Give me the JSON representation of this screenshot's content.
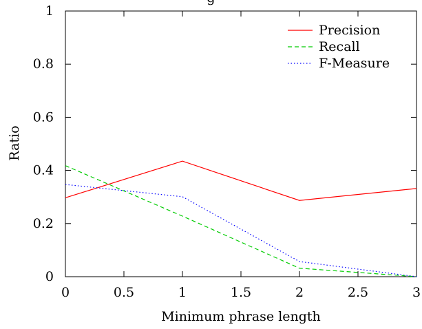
{
  "chart_data": {
    "type": "line",
    "title": "g",
    "xlabel": "Minimum phrase length",
    "ylabel": "Ratio",
    "xlim": [
      0,
      3
    ],
    "ylim": [
      0,
      1
    ],
    "x_ticks": [
      "0",
      "0.5",
      "1",
      "1.5",
      "2",
      "2.5",
      "3"
    ],
    "y_ticks": [
      "0",
      "0.2",
      "0.4",
      "0.6",
      "0.8",
      "1"
    ],
    "x_tick_values": [
      0,
      0.5,
      1,
      1.5,
      2,
      2.5,
      3
    ],
    "y_tick_values": [
      0,
      0.2,
      0.4,
      0.6,
      0.8,
      1
    ],
    "x": [
      0,
      1,
      2,
      3
    ],
    "grid": false,
    "legend_position": "top-right",
    "series": [
      {
        "name": "Precision",
        "values": [
          0.297,
          0.435,
          0.287,
          0.332
        ],
        "color": "#ff0000",
        "style": "solid"
      },
      {
        "name": "Recall",
        "values": [
          0.418,
          0.228,
          0.032,
          0.0
        ],
        "color": "#00cc00",
        "style": "dashed"
      },
      {
        "name": "F-Measure",
        "values": [
          0.347,
          0.301,
          0.057,
          0.0
        ],
        "color": "#0000ff",
        "style": "dotted"
      }
    ]
  }
}
